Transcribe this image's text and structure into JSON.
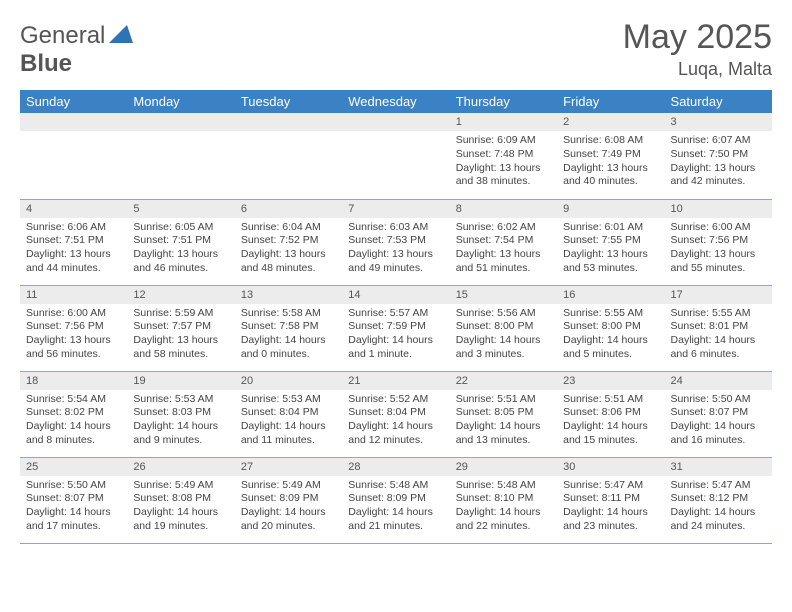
{
  "logo": {
    "word1": "General",
    "word2": "Blue",
    "shape_color": "#2e74b5"
  },
  "title": "May 2025",
  "location": "Luqa, Malta",
  "colors": {
    "header_bg": "#3a82c4",
    "header_text": "#ffffff",
    "daynum_bg": "#ececec",
    "text": "#444444",
    "border": "#88aad0",
    "page_bg": "#ffffff"
  },
  "layout": {
    "first_day_col": 4
  },
  "weekdays": [
    "Sunday",
    "Monday",
    "Tuesday",
    "Wednesday",
    "Thursday",
    "Friday",
    "Saturday"
  ],
  "days": [
    {
      "n": 1,
      "sr": "6:09 AM",
      "ss": "7:48 PM",
      "dl": "13 hours and 38 minutes."
    },
    {
      "n": 2,
      "sr": "6:08 AM",
      "ss": "7:49 PM",
      "dl": "13 hours and 40 minutes."
    },
    {
      "n": 3,
      "sr": "6:07 AM",
      "ss": "7:50 PM",
      "dl": "13 hours and 42 minutes."
    },
    {
      "n": 4,
      "sr": "6:06 AM",
      "ss": "7:51 PM",
      "dl": "13 hours and 44 minutes."
    },
    {
      "n": 5,
      "sr": "6:05 AM",
      "ss": "7:51 PM",
      "dl": "13 hours and 46 minutes."
    },
    {
      "n": 6,
      "sr": "6:04 AM",
      "ss": "7:52 PM",
      "dl": "13 hours and 48 minutes."
    },
    {
      "n": 7,
      "sr": "6:03 AM",
      "ss": "7:53 PM",
      "dl": "13 hours and 49 minutes."
    },
    {
      "n": 8,
      "sr": "6:02 AM",
      "ss": "7:54 PM",
      "dl": "13 hours and 51 minutes."
    },
    {
      "n": 9,
      "sr": "6:01 AM",
      "ss": "7:55 PM",
      "dl": "13 hours and 53 minutes."
    },
    {
      "n": 10,
      "sr": "6:00 AM",
      "ss": "7:56 PM",
      "dl": "13 hours and 55 minutes."
    },
    {
      "n": 11,
      "sr": "6:00 AM",
      "ss": "7:56 PM",
      "dl": "13 hours and 56 minutes."
    },
    {
      "n": 12,
      "sr": "5:59 AM",
      "ss": "7:57 PM",
      "dl": "13 hours and 58 minutes."
    },
    {
      "n": 13,
      "sr": "5:58 AM",
      "ss": "7:58 PM",
      "dl": "14 hours and 0 minutes."
    },
    {
      "n": 14,
      "sr": "5:57 AM",
      "ss": "7:59 PM",
      "dl": "14 hours and 1 minute."
    },
    {
      "n": 15,
      "sr": "5:56 AM",
      "ss": "8:00 PM",
      "dl": "14 hours and 3 minutes."
    },
    {
      "n": 16,
      "sr": "5:55 AM",
      "ss": "8:00 PM",
      "dl": "14 hours and 5 minutes."
    },
    {
      "n": 17,
      "sr": "5:55 AM",
      "ss": "8:01 PM",
      "dl": "14 hours and 6 minutes."
    },
    {
      "n": 18,
      "sr": "5:54 AM",
      "ss": "8:02 PM",
      "dl": "14 hours and 8 minutes."
    },
    {
      "n": 19,
      "sr": "5:53 AM",
      "ss": "8:03 PM",
      "dl": "14 hours and 9 minutes."
    },
    {
      "n": 20,
      "sr": "5:53 AM",
      "ss": "8:04 PM",
      "dl": "14 hours and 11 minutes."
    },
    {
      "n": 21,
      "sr": "5:52 AM",
      "ss": "8:04 PM",
      "dl": "14 hours and 12 minutes."
    },
    {
      "n": 22,
      "sr": "5:51 AM",
      "ss": "8:05 PM",
      "dl": "14 hours and 13 minutes."
    },
    {
      "n": 23,
      "sr": "5:51 AM",
      "ss": "8:06 PM",
      "dl": "14 hours and 15 minutes."
    },
    {
      "n": 24,
      "sr": "5:50 AM",
      "ss": "8:07 PM",
      "dl": "14 hours and 16 minutes."
    },
    {
      "n": 25,
      "sr": "5:50 AM",
      "ss": "8:07 PM",
      "dl": "14 hours and 17 minutes."
    },
    {
      "n": 26,
      "sr": "5:49 AM",
      "ss": "8:08 PM",
      "dl": "14 hours and 19 minutes."
    },
    {
      "n": 27,
      "sr": "5:49 AM",
      "ss": "8:09 PM",
      "dl": "14 hours and 20 minutes."
    },
    {
      "n": 28,
      "sr": "5:48 AM",
      "ss": "8:09 PM",
      "dl": "14 hours and 21 minutes."
    },
    {
      "n": 29,
      "sr": "5:48 AM",
      "ss": "8:10 PM",
      "dl": "14 hours and 22 minutes."
    },
    {
      "n": 30,
      "sr": "5:47 AM",
      "ss": "8:11 PM",
      "dl": "14 hours and 23 minutes."
    },
    {
      "n": 31,
      "sr": "5:47 AM",
      "ss": "8:12 PM",
      "dl": "14 hours and 24 minutes."
    }
  ],
  "labels": {
    "sunrise": "Sunrise:",
    "sunset": "Sunset:",
    "daylight": "Daylight:"
  }
}
